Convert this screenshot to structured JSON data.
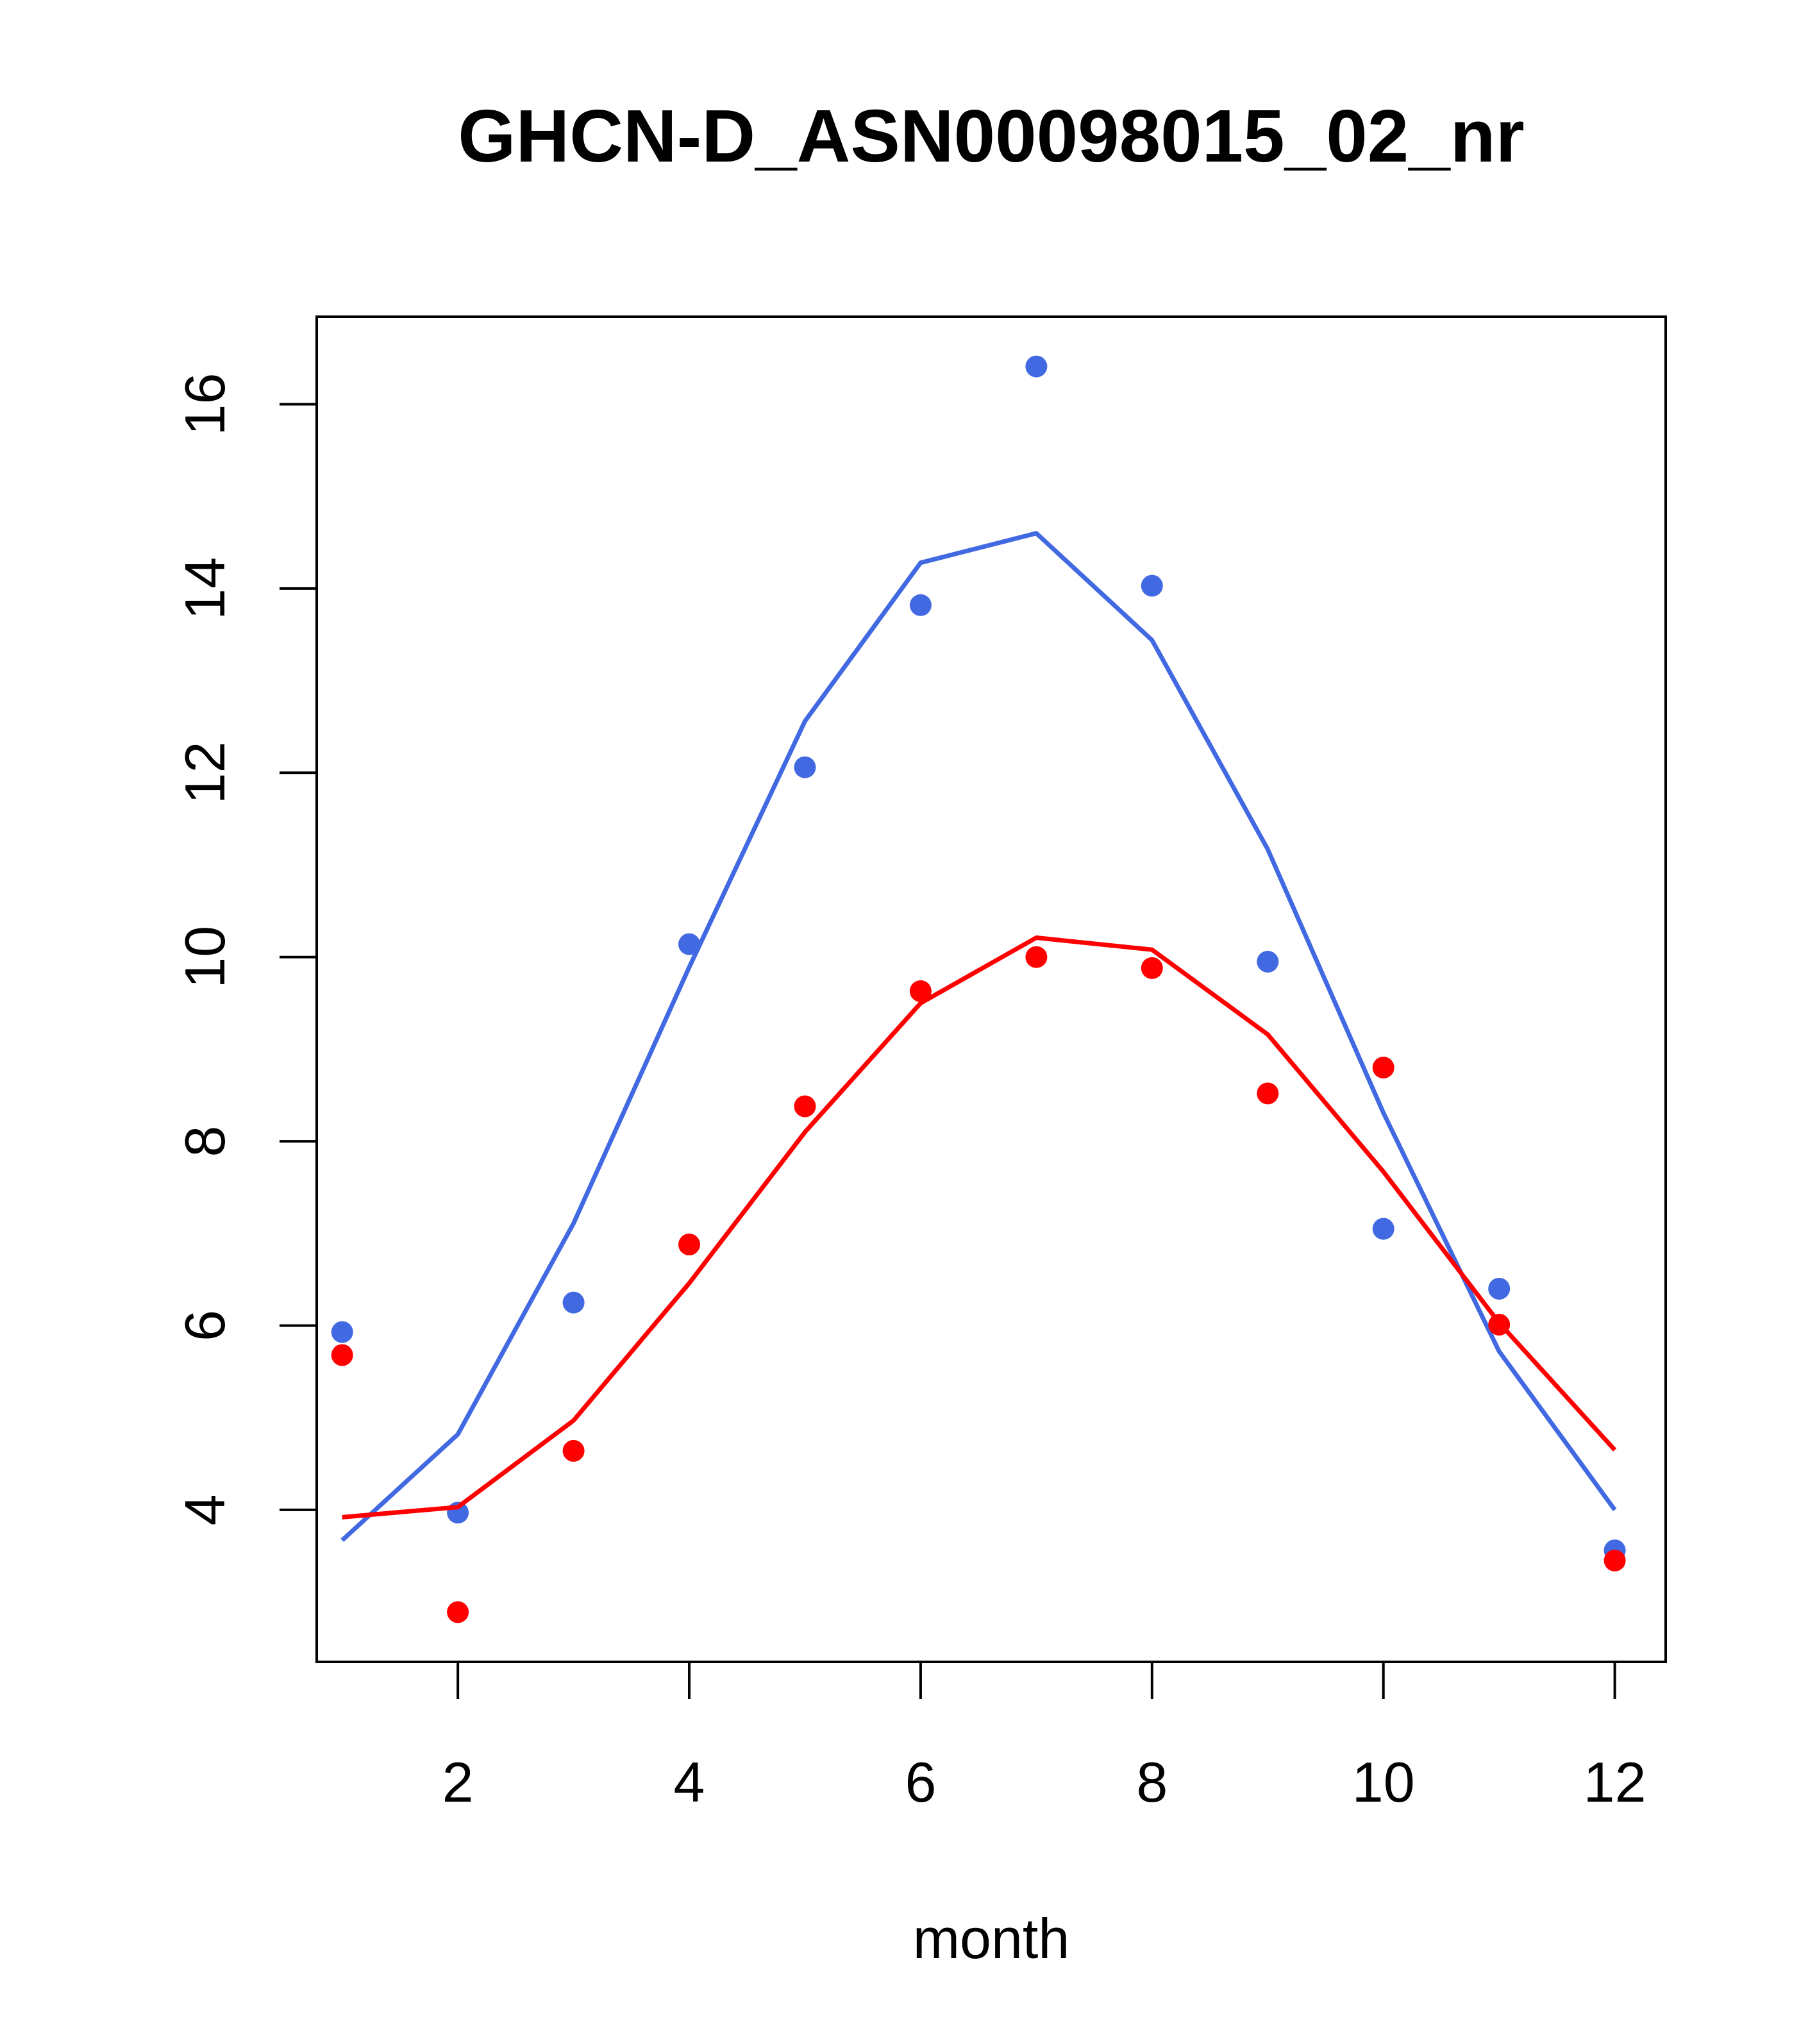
{
  "chart_data": {
    "type": "scatter",
    "title": "GHCN-D_ASN00098015_02_nr",
    "xlabel": "month",
    "ylabel": "",
    "xlim": [
      0.78,
      12.44
    ],
    "ylim": [
      2.35,
      16.95
    ],
    "xticks": [
      2,
      4,
      6,
      8,
      10,
      12
    ],
    "yticks": [
      4,
      6,
      8,
      10,
      12,
      14,
      16
    ],
    "grid": false,
    "series": [
      {
        "color": "#4169e1",
        "points": [
          [
            1,
            5.93
          ],
          [
            2,
            3.97
          ],
          [
            3,
            6.25
          ],
          [
            4,
            10.14
          ],
          [
            5,
            12.06
          ],
          [
            6,
            13.82
          ],
          [
            7,
            16.41
          ],
          [
            8,
            14.03
          ],
          [
            9,
            9.95
          ],
          [
            10,
            7.05
          ],
          [
            11,
            6.4
          ],
          [
            12,
            3.56
          ]
        ],
        "line": [
          [
            1,
            3.67
          ],
          [
            2,
            4.82
          ],
          [
            3,
            7.11
          ],
          [
            4,
            9.89
          ],
          [
            5,
            12.56
          ],
          [
            6,
            14.28
          ],
          [
            7,
            14.6
          ],
          [
            8,
            13.44
          ],
          [
            9,
            11.17
          ],
          [
            10,
            8.31
          ],
          [
            11,
            5.72
          ],
          [
            12,
            4.0
          ]
        ]
      },
      {
        "color": "#ff0000",
        "points": [
          [
            1,
            5.68
          ],
          [
            2,
            2.89
          ],
          [
            3,
            4.64
          ],
          [
            4,
            6.88
          ],
          [
            5,
            8.38
          ],
          [
            6,
            9.63
          ],
          [
            7,
            10.0
          ],
          [
            8,
            9.88
          ],
          [
            9,
            8.52
          ],
          [
            10,
            8.8
          ],
          [
            11,
            6.01
          ],
          [
            12,
            3.45
          ]
        ],
        "line": [
          [
            1,
            3.92
          ],
          [
            2,
            4.03
          ],
          [
            3,
            4.97
          ],
          [
            4,
            6.46
          ],
          [
            5,
            8.1
          ],
          [
            6,
            9.5
          ],
          [
            7,
            10.21
          ],
          [
            8,
            10.08
          ],
          [
            9,
            9.16
          ],
          [
            10,
            7.67
          ],
          [
            11,
            6.03
          ],
          [
            12,
            4.65
          ]
        ]
      }
    ]
  }
}
